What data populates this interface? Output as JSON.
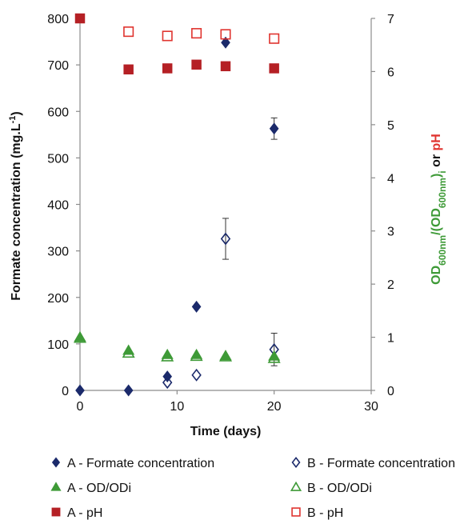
{
  "chart_data": {
    "type": "scatter",
    "xlabel": "Time (days)",
    "ylabel_left": "Formate concentration (mg.L",
    "ylabel_left_sup": "-1",
    "ylabel_left_end": ")",
    "ylabel_right": {
      "part1": "OD",
      "part1_sub": "600nm",
      "part2": "/(OD",
      "part2_sub": "600nm",
      "part3": ")",
      "part3_sub": "i",
      "or_text": " or ",
      "ph_text": "pH"
    },
    "x_range": [
      0,
      30
    ],
    "x_ticks": [
      0,
      10,
      20,
      30
    ],
    "y_left_range": [
      0,
      800
    ],
    "y_left_ticks": [
      0,
      100,
      200,
      300,
      400,
      500,
      600,
      700,
      800
    ],
    "y_right_range": [
      0,
      7
    ],
    "y_right_ticks": [
      0,
      1,
      2,
      3,
      4,
      5,
      6,
      7
    ],
    "grid": false,
    "legend_placement": "bottom",
    "series": [
      {
        "name": "A - Formate concentration",
        "axis": "left",
        "marker": "diamond-filled",
        "color": "#1b2a6b",
        "points": [
          {
            "x": 0,
            "y": 0
          },
          {
            "x": 5,
            "y": 0
          },
          {
            "x": 9,
            "y": 30
          },
          {
            "x": 12,
            "y": 180
          },
          {
            "x": 15,
            "y": 748
          },
          {
            "x": 20,
            "y": 563,
            "err": 23
          }
        ]
      },
      {
        "name": "B - Formate concentration",
        "axis": "left",
        "marker": "diamond-open",
        "color": "#1b2a6b",
        "points": [
          {
            "x": 9,
            "y": 17
          },
          {
            "x": 12,
            "y": 33
          },
          {
            "x": 15,
            "y": 326,
            "err": 44
          },
          {
            "x": 20,
            "y": 88,
            "err": 35
          }
        ]
      },
      {
        "name": "A -  OD/ODi",
        "axis": "right",
        "marker": "triangle-filled",
        "color": "#3e9a37",
        "points": [
          {
            "x": 0,
            "y": 1.0
          },
          {
            "x": 5,
            "y": 0.75
          },
          {
            "x": 9,
            "y": 0.67
          },
          {
            "x": 12,
            "y": 0.67
          },
          {
            "x": 15,
            "y": 0.65
          },
          {
            "x": 20,
            "y": 0.64
          }
        ]
      },
      {
        "name": "B - OD/ODi",
        "axis": "right",
        "marker": "triangle-open",
        "color": "#3e9a37",
        "points": [
          {
            "x": 0,
            "y": 0.98
          },
          {
            "x": 5,
            "y": 0.7
          },
          {
            "x": 9,
            "y": 0.63
          },
          {
            "x": 12,
            "y": 0.64
          },
          {
            "x": 15,
            "y": 0.63
          },
          {
            "x": 20,
            "y": 0.6
          }
        ]
      },
      {
        "name": "A - pH",
        "axis": "right",
        "marker": "square-filled",
        "color": "#b52025",
        "points": [
          {
            "x": 0,
            "y": 7.0
          },
          {
            "x": 5,
            "y": 6.04
          },
          {
            "x": 9,
            "y": 6.06
          },
          {
            "x": 12,
            "y": 6.13
          },
          {
            "x": 15,
            "y": 6.1
          },
          {
            "x": 20,
            "y": 6.06
          }
        ]
      },
      {
        "name": "B - pH",
        "axis": "right",
        "marker": "square-open",
        "color": "#e0342f",
        "points": [
          {
            "x": 5,
            "y": 6.75
          },
          {
            "x": 9,
            "y": 6.67
          },
          {
            "x": 12,
            "y": 6.72
          },
          {
            "x": 15,
            "y": 6.7
          },
          {
            "x": 20,
            "y": 6.62
          }
        ]
      }
    ]
  },
  "colors": {
    "axis": "#8c8c8c",
    "left_title": "#1b2a6b",
    "right_title_od": "#3e9a37",
    "right_title_or": "#111111",
    "right_title_ph": "#e0342f"
  }
}
